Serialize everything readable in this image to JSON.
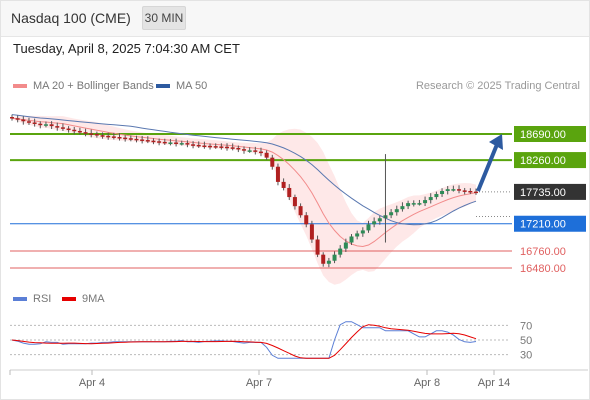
{
  "header": {
    "title": "Nasdaq 100 (CME)",
    "timeframe": "30 MIN"
  },
  "datetime": "Tuesday, April 8, 2025 7:04:30 AM CET",
  "copyright": "Research © 2025 Trading Central",
  "legend_main": [
    {
      "label": "MA 20 + Bollinger Bands",
      "color": "#f28b8b"
    },
    {
      "label": "MA 50",
      "color": "#2d5aa0"
    }
  ],
  "legend_rsi": [
    {
      "label": "RSI",
      "color": "#5b7fd6"
    },
    {
      "label": "9MA",
      "color": "#e60000"
    }
  ],
  "colors": {
    "resistance": "#5aa40e",
    "support": "#1e6fd9",
    "support2": "#e06060",
    "price_tag": "#333333",
    "arrow": "#2d5aa0"
  },
  "chart_data": [
    {
      "type": "line",
      "title": "Nasdaq 100 (CME)",
      "x_labels": [
        "Apr 4",
        "Apr 7",
        "Apr 8",
        "Apr 14"
      ],
      "levels": [
        {
          "value": 18690.0,
          "label": "18690.00",
          "kind": "resistance"
        },
        {
          "value": 18260.0,
          "label": "18260.00",
          "kind": "resistance"
        },
        {
          "value": 17735.0,
          "label": "17735.00",
          "kind": "last"
        },
        {
          "value": 17210.0,
          "label": "17210.00",
          "kind": "support"
        },
        {
          "value": 16760.0,
          "label": "16760.00",
          "kind": "support2"
        },
        {
          "value": 16480.0,
          "label": "16480.00",
          "kind": "support2"
        }
      ],
      "price_close": [
        18950,
        18930,
        18900,
        18880,
        18860,
        18840,
        18850,
        18820,
        18800,
        18780,
        18760,
        18740,
        18720,
        18700,
        18690,
        18670,
        18660,
        18650,
        18640,
        18630,
        18620,
        18610,
        18600,
        18590,
        18580,
        18570,
        18560,
        18550,
        18550,
        18540,
        18540,
        18520,
        18510,
        18500,
        18495,
        18490,
        18485,
        18480,
        18470,
        18460,
        18440,
        18420,
        18420,
        18400,
        18380,
        18300,
        18150,
        17900,
        17800,
        17650,
        17500,
        17350,
        17200,
        16950,
        16700,
        16550,
        16600,
        16700,
        16800,
        16900,
        17000,
        17050,
        17100,
        17200,
        17250,
        17300,
        17350,
        17400,
        17450,
        17500,
        17550,
        17550,
        17550,
        17600,
        17650,
        17700,
        17750,
        17780,
        17780,
        17760,
        17750,
        17740,
        17735
      ]
    },
    {
      "type": "line",
      "title": "RSI",
      "yticks": [
        70,
        50,
        30
      ],
      "ylim": [
        20,
        80
      ]
    }
  ]
}
